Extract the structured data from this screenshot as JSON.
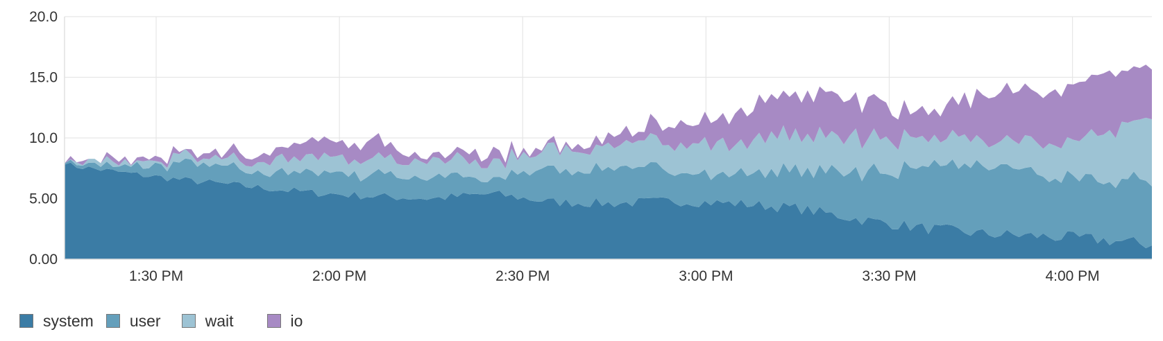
{
  "chart_data": {
    "type": "area",
    "stacked": true,
    "title": "",
    "xlabel": "",
    "ylabel": "",
    "ylim": [
      0,
      20
    ],
    "y_ticks": [
      "0.00",
      "5.00",
      "10.0",
      "15.0",
      "20.0"
    ],
    "x_ticks": [
      "1:30 PM",
      "2:00 PM",
      "2:30 PM",
      "3:00 PM",
      "3:30 PM",
      "4:00 PM"
    ],
    "x_tick_minutes": [
      810,
      840,
      870,
      900,
      930,
      960
    ],
    "xlim_minutes": [
      795,
      973
    ],
    "grid": true,
    "legend_position": "bottom-left",
    "x_minutes": [
      795,
      805,
      815,
      825,
      835,
      845,
      855,
      865,
      875,
      885,
      895,
      905,
      915,
      925,
      935,
      945,
      955,
      965,
      973
    ],
    "series": [
      {
        "name": "system",
        "color": "#3b7ca5",
        "values": [
          7.8,
          7.1,
          6.5,
          6.0,
          5.5,
          5.2,
          5.0,
          5.4,
          4.7,
          4.6,
          4.8,
          4.6,
          4.2,
          3.3,
          2.6,
          2.1,
          1.9,
          1.6,
          1.2
        ]
      },
      {
        "name": "user",
        "color": "#649fbb",
        "values": [
          0.1,
          0.6,
          1.3,
          1.4,
          1.7,
          1.8,
          1.9,
          1.3,
          2.6,
          2.8,
          2.4,
          2.3,
          3.1,
          3.9,
          5.0,
          5.6,
          5.1,
          4.7,
          5.3
        ]
      },
      {
        "name": "wait",
        "color": "#9dc3d4",
        "values": [
          0.0,
          0.3,
          0.5,
          0.9,
          1.1,
          1.3,
          1.6,
          1.2,
          1.7,
          1.7,
          2.2,
          2.6,
          2.9,
          2.9,
          2.4,
          2.2,
          2.7,
          3.8,
          5.1
        ]
      },
      {
        "name": "io",
        "color": "#a78ac4",
        "values": [
          0.0,
          0.2,
          0.3,
          0.5,
          1.2,
          1.5,
          0.4,
          0.6,
          0.4,
          0.6,
          1.6,
          2.4,
          3.4,
          3.3,
          2.1,
          3.5,
          4.6,
          4.8,
          4.2
        ]
      }
    ]
  }
}
